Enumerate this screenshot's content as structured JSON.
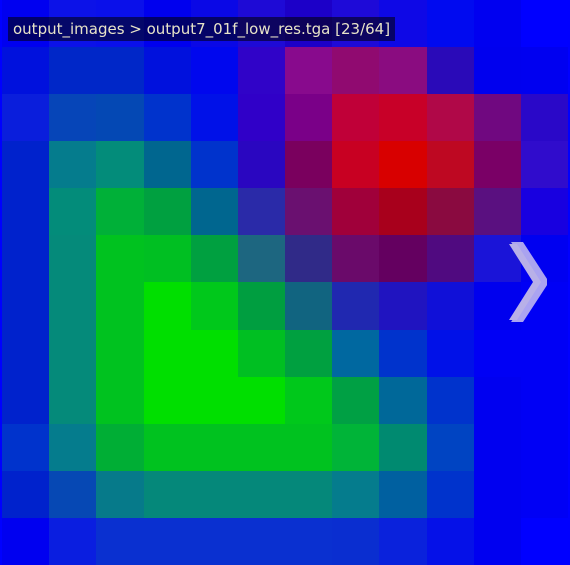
{
  "viewer": {
    "caption": "output_images > output7_01f_low_res.tga [23/64]",
    "next_icon": "chevron-right-icon",
    "image": {
      "columns": 12,
      "rows": 12,
      "pixels": [
        [
          "#0000f0",
          "#0c12e8",
          "#0a10ea",
          "#0000ee",
          "#0a08e6",
          "#1e0ad6",
          "#1c00c8",
          "#1e0ad8",
          "#0e08e6",
          "#000af0",
          "#0000f0",
          "#0000ff"
        ],
        [
          "#0011dd",
          "#0027c8",
          "#0027c8",
          "#0011dd",
          "#0007ee",
          "#3003c8",
          "#880a8d",
          "#900a70",
          "#8a0c80",
          "#2a0ab8",
          "#0000ee",
          "#0000f0"
        ],
        [
          "#0a1edc",
          "#0645b8",
          "#0448b4",
          "#0033cc",
          "#0011e8",
          "#3000c8",
          "#7a0088",
          "#c00038",
          "#c80028",
          "#b00848",
          "#700880",
          "#2a08c8"
        ],
        [
          "#0022cc",
          "#057c8d",
          "#038c7a",
          "#00668f",
          "#0033cc",
          "#2a06c0",
          "#7a005e",
          "#c80022",
          "#d80000",
          "#be0822",
          "#7a0066",
          "#300ccc"
        ],
        [
          "#0022cc",
          "#038c7a",
          "#00b038",
          "#00a040",
          "#00668f",
          "#2a2aa8",
          "#6a1070",
          "#a0003a",
          "#a8001c",
          "#8a0a40",
          "#5a1080",
          "#1800e0"
        ],
        [
          "#0022cc",
          "#058a7a",
          "#00c21f",
          "#00bf22",
          "#00a040",
          "#1d6680",
          "#302a88",
          "#6a0a6a",
          "#640060",
          "#500a80",
          "#1a14d8",
          "#0000f0"
        ],
        [
          "#0022cc",
          "#058a7a",
          "#00c21f",
          "#00df00",
          "#00c81b",
          "#009e40",
          "#116480",
          "#2028b0",
          "#2014c0",
          "#1010d8",
          "#0000ee",
          "#0000f5"
        ],
        [
          "#0022cc",
          "#058a7a",
          "#00c21f",
          "#00df00",
          "#00df00",
          "#00bf22",
          "#00a040",
          "#0068a0",
          "#0033cc",
          "#0011e8",
          "#0000f5",
          "#0000f5"
        ],
        [
          "#0022cc",
          "#058a7a",
          "#00c21f",
          "#00df00",
          "#00df00",
          "#00df00",
          "#00c81b",
          "#00a044",
          "#006899",
          "#0033cc",
          "#0000f0",
          "#0000f5"
        ],
        [
          "#0033cc",
          "#057c8d",
          "#00ae35",
          "#00c21f",
          "#00c21f",
          "#00c21f",
          "#00c21f",
          "#00b438",
          "#008a70",
          "#0044c2",
          "#0000f0",
          "#0000f5"
        ],
        [
          "#0022cc",
          "#0648b4",
          "#067a8a",
          "#05887a",
          "#05887a",
          "#05887a",
          "#05887a",
          "#057c8d",
          "#0060a0",
          "#0033cc",
          "#0000f0",
          "#0000f5"
        ],
        [
          "#0000f0",
          "#0a1ee0",
          "#0a30d0",
          "#0a30d0",
          "#0a30d0",
          "#0a30d0",
          "#0a30d0",
          "#0a2ed0",
          "#0a22dc",
          "#0511e8",
          "#0000f0",
          "#0000ff"
        ]
      ]
    }
  }
}
